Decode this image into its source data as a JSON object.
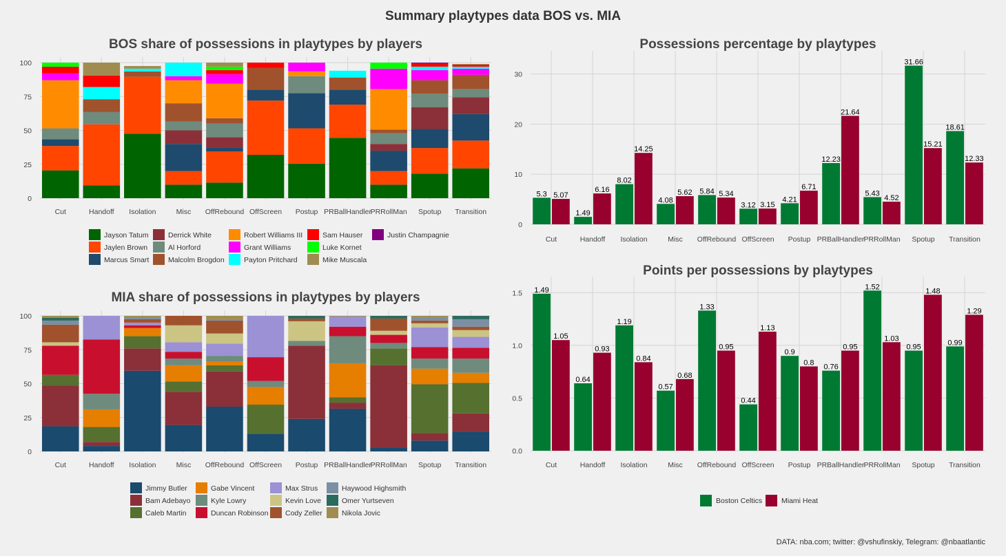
{
  "title": "Summary playtypes data BOS vs. MIA",
  "caption": "DATA: nba.com; twitter: @vshufinskiy, Telegram: @nbaatlantic",
  "playtypes": [
    "Cut",
    "Handoff",
    "Isolation",
    "Misc",
    "OffRebound",
    "OffScreen",
    "Postup",
    "PRBallHandler",
    "PRRollMan",
    "Spotup",
    "Transition"
  ],
  "teams": [
    {
      "name": "Boston Celtics",
      "color": "#007a33"
    },
    {
      "name": "Miami Heat",
      "color": "#98002e"
    }
  ],
  "chart_data": [
    {
      "type": "bar",
      "stacked": true,
      "title": "BOS share of possessions in playtypes by players",
      "categories": [
        "Cut",
        "Handoff",
        "Isolation",
        "Misc",
        "OffRebound",
        "OffScreen",
        "Postup",
        "PRBallHandler",
        "PRRollMan",
        "Spotup",
        "Transition"
      ],
      "yticks": [
        0,
        25,
        50,
        75,
        100
      ],
      "ylim": [
        0,
        100
      ],
      "series": [
        {
          "name": "Jayson Tatum",
          "color": "#006400",
          "values": [
            20.5,
            9.5,
            47.5,
            10,
            11.5,
            32,
            25.5,
            44.5,
            10,
            18,
            22
          ]
        },
        {
          "name": "Jaylen Brown",
          "color": "#ff4500",
          "values": [
            18,
            45,
            42,
            10,
            23,
            40,
            26,
            24.5,
            10,
            19,
            20.5
          ]
        },
        {
          "name": "Marcus Smart",
          "color": "#1e4a6e",
          "values": [
            5,
            0,
            0,
            20,
            3,
            8,
            26,
            11,
            15,
            14,
            19.5
          ]
        },
        {
          "name": "Derrick White",
          "color": "#8b3038",
          "values": [
            0,
            0,
            0,
            10,
            7.5,
            0,
            0,
            0,
            5,
            16,
            12.5
          ]
        },
        {
          "name": "Al Horford",
          "color": "#6e8b7d",
          "values": [
            8,
            9,
            0,
            6.5,
            10,
            0,
            12.5,
            0,
            8,
            10,
            6
          ]
        },
        {
          "name": "Malcolm Brogdon",
          "color": "#a0522d",
          "values": [
            0,
            9.5,
            4,
            13.5,
            4,
            16,
            0,
            9,
            2.5,
            10,
            10.5
          ]
        },
        {
          "name": "Robert Williams III",
          "color": "#ff8c00",
          "values": [
            35.5,
            0,
            0,
            17,
            25.5,
            0,
            3.5,
            0,
            30,
            0,
            0
          ]
        },
        {
          "name": "Grant Williams",
          "color": "#ff00ff",
          "values": [
            5,
            0,
            0,
            3,
            7,
            0,
            6.5,
            0,
            15,
            7.5,
            4.5
          ]
        },
        {
          "name": "Payton Pritchard",
          "color": "#00ffff",
          "values": [
            0,
            9,
            2,
            10,
            0,
            0,
            0,
            5,
            0,
            2.5,
            1.5
          ]
        },
        {
          "name": "Sam Hauser",
          "color": "#ff0000",
          "values": [
            5,
            8.5,
            0,
            0,
            3,
            4,
            0,
            0,
            0,
            2.5,
            1.5
          ]
        },
        {
          "name": "Luke Kornet",
          "color": "#00ff00",
          "values": [
            3,
            0,
            0,
            0,
            2.5,
            0,
            0,
            0,
            4.5,
            0,
            0
          ]
        },
        {
          "name": "Mike Muscala",
          "color": "#a08c50",
          "values": [
            0,
            9.5,
            2,
            0,
            3,
            0,
            0,
            0,
            0,
            0,
            0.5
          ]
        },
        {
          "name": "Justin Champagnie",
          "color": "#800080",
          "values": [
            0,
            0,
            0,
            0,
            0,
            0,
            0,
            0,
            0,
            0.5,
            0
          ]
        }
      ]
    },
    {
      "type": "bar",
      "stacked": true,
      "title": "MIA share of possessions in playtypes by players",
      "categories": [
        "Cut",
        "Handoff",
        "Isolation",
        "Misc",
        "OffRebound",
        "OffScreen",
        "Postup",
        "PRBallHandler",
        "PRRollMan",
        "Spotup",
        "Transition"
      ],
      "yticks": [
        0,
        25,
        50,
        75,
        100
      ],
      "ylim": [
        0,
        100
      ],
      "series": [
        {
          "name": "Jimmy Butler",
          "color": "#1a4a6e",
          "values": [
            18.5,
            4,
            59.5,
            19.5,
            33,
            13,
            24,
            31.5,
            3,
            8,
            14.5
          ]
        },
        {
          "name": "Bam Adebayo",
          "color": "#8b3038",
          "values": [
            30,
            3,
            16.5,
            24.5,
            26,
            0,
            54,
            4.5,
            60.5,
            5.5,
            13.5
          ]
        },
        {
          "name": "Caleb Martin",
          "color": "#567030",
          "values": [
            8,
            11,
            9,
            7.5,
            4.5,
            21.5,
            0,
            4,
            12.5,
            36,
            22.5
          ]
        },
        {
          "name": "Gabe Vincent",
          "color": "#e67e00",
          "values": [
            0,
            13,
            6,
            12,
            3,
            13,
            0,
            25,
            0,
            11.5,
            7.5
          ]
        },
        {
          "name": "Kyle Lowry",
          "color": "#6e8b7d",
          "values": [
            0,
            11.5,
            0,
            5,
            4,
            4.5,
            3.5,
            20,
            4,
            7.5,
            10.5
          ]
        },
        {
          "name": "Duncan Robinson",
          "color": "#c8102e",
          "values": [
            21.5,
            40,
            2,
            5,
            0,
            17.5,
            0,
            7,
            6,
            8.5,
            8
          ]
        },
        {
          "name": "Max Strus",
          "color": "#9b91d4",
          "values": [
            0,
            17.5,
            2,
            7,
            9,
            30.5,
            0,
            7.5,
            0,
            14.5,
            8
          ]
        },
        {
          "name": "Kevin Love",
          "color": "#ccc483",
          "values": [
            2.5,
            0,
            0,
            12.5,
            7.5,
            0,
            14.5,
            0,
            3,
            3,
            5
          ]
        },
        {
          "name": "Cody Zeller",
          "color": "#a0522d",
          "values": [
            13,
            0,
            2.5,
            7,
            9.5,
            0,
            2,
            0,
            9,
            2,
            2.5
          ]
        },
        {
          "name": "Haywood Highsmith",
          "color": "#7a8fa3",
          "values": [
            3,
            0,
            1.5,
            0,
            1,
            0,
            0,
            0,
            0,
            2,
            5.5
          ]
        },
        {
          "name": "Omer Yurtseven",
          "color": "#2a6b5e",
          "values": [
            2,
            0,
            0,
            0,
            0,
            0,
            2,
            0,
            2,
            0,
            2.5
          ]
        },
        {
          "name": "Nikola Jovic",
          "color": "#a08c50",
          "values": [
            1.5,
            0,
            1,
            0,
            2.5,
            0,
            0,
            0.5,
            0,
            1.5,
            0
          ]
        }
      ]
    },
    {
      "type": "bar",
      "title": "Possessions percentage by playtypes",
      "categories": [
        "Cut",
        "Handoff",
        "Isolation",
        "Misc",
        "OffRebound",
        "OffScreen",
        "Postup",
        "PRBallHandler",
        "PRRollMan",
        "Spotup",
        "Transition"
      ],
      "yticks": [
        0,
        10,
        20,
        30
      ],
      "ylim": [
        0,
        33.5
      ],
      "series": [
        {
          "name": "Boston Celtics",
          "values": [
            5.3,
            1.49,
            8.02,
            4.08,
            5.84,
            3.12,
            4.21,
            12.23,
            5.43,
            31.66,
            18.61
          ],
          "labels": [
            "5.3",
            "1.49",
            "8.02",
            "4.08",
            "5.84",
            "3.12",
            "4.21",
            "12.23",
            "5.43",
            "31.66",
            "18.61"
          ]
        },
        {
          "name": "Miami Heat",
          "values": [
            5.07,
            6.16,
            14.25,
            5.62,
            5.34,
            3.15,
            6.71,
            21.64,
            4.52,
            15.21,
            12.33
          ],
          "labels": [
            "5.07",
            "6.16",
            "14.25",
            "5.62",
            "5.34",
            "3.15",
            "6.71",
            "21.64",
            "4.52",
            "15.21",
            "12.33"
          ]
        }
      ]
    },
    {
      "type": "bar",
      "title": "Points per possessions by playtypes",
      "categories": [
        "Cut",
        "Handoff",
        "Isolation",
        "Misc",
        "OffRebound",
        "OffScreen",
        "Postup",
        "PRBallHandler",
        "PRRollMan",
        "Spotup",
        "Transition"
      ],
      "yticks": [
        0,
        0.5,
        1,
        1.5
      ],
      "yticklabels": [
        "0.0",
        "0.5",
        "1.0",
        "1.5"
      ],
      "ylim": [
        0,
        1.6
      ],
      "series": [
        {
          "name": "Boston Celtics",
          "values": [
            1.49,
            0.64,
            1.19,
            0.57,
            1.33,
            0.44,
            0.9,
            0.76,
            1.52,
            0.95,
            0.99
          ],
          "labels": [
            "1.49",
            "0.64",
            "1.19",
            "0.57",
            "1.33",
            "0.44",
            "0.9",
            "0.76",
            "1.52",
            "0.95",
            "0.99"
          ]
        },
        {
          "name": "Miami Heat",
          "values": [
            1.05,
            0.93,
            0.84,
            0.68,
            0.95,
            1.13,
            0.8,
            0.95,
            1.03,
            1.48,
            1.29
          ],
          "labels": [
            "1.05",
            "0.93",
            "0.84",
            "0.68",
            "0.95",
            "1.13",
            "0.8",
            "0.95",
            "1.03",
            "1.48",
            "1.29"
          ]
        }
      ]
    }
  ]
}
